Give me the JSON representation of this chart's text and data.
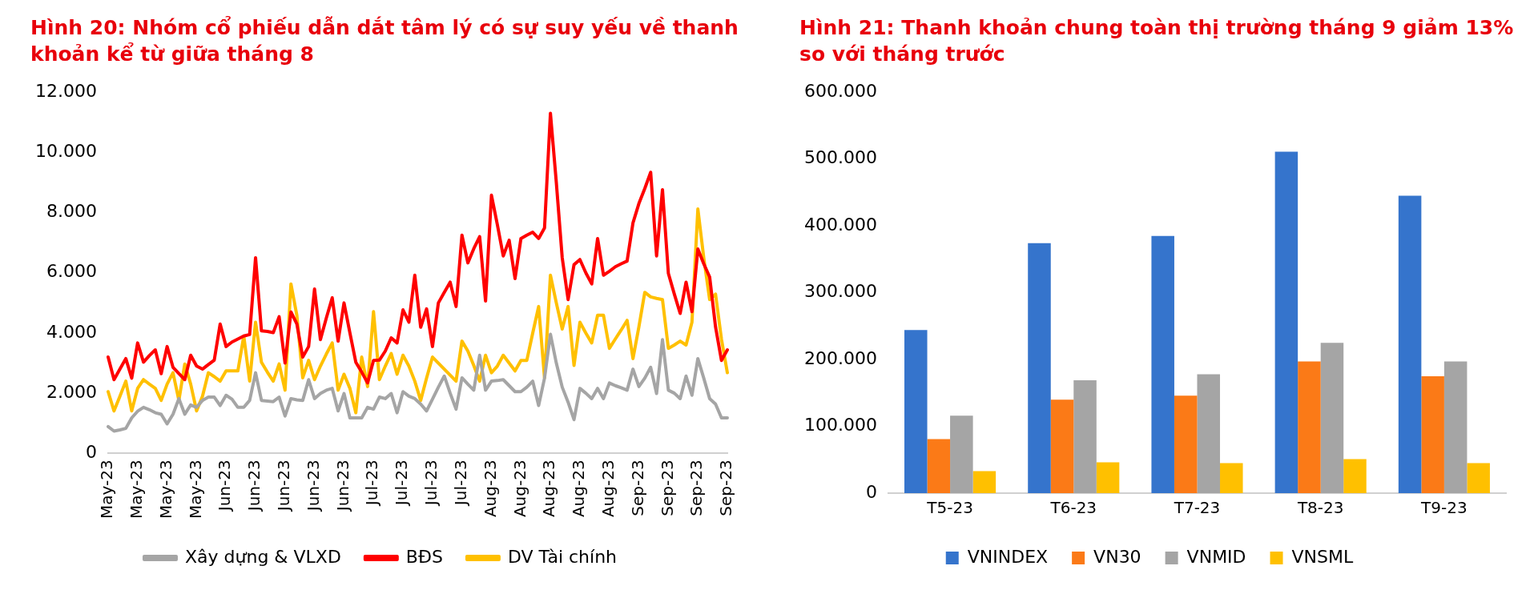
{
  "chart_data": [
    {
      "type": "line",
      "title": "Hình 20: Nhóm cổ phiếu dẫn dắt tâm lý có sự suy yếu về thanh khoản kể từ giữa tháng 8",
      "categories": [
        "May-23",
        null,
        null,
        null,
        null,
        "May-23",
        null,
        null,
        null,
        null,
        "May-23",
        null,
        null,
        null,
        null,
        "May-23",
        null,
        null,
        null,
        null,
        "Jun-23",
        null,
        null,
        null,
        null,
        "Jun-23",
        null,
        null,
        null,
        null,
        "Jun-23",
        null,
        null,
        null,
        null,
        "Jun-23",
        null,
        null,
        null,
        null,
        "Jun-23",
        null,
        null,
        null,
        null,
        "Jul-23",
        null,
        null,
        null,
        null,
        "Jul-23",
        null,
        null,
        null,
        null,
        "Jul-23",
        null,
        null,
        null,
        null,
        "Jul-23",
        null,
        null,
        null,
        null,
        "Aug-23",
        null,
        null,
        null,
        null,
        "Aug-23",
        null,
        null,
        null,
        null,
        "Aug-23",
        null,
        null,
        null,
        null,
        "Aug-23",
        null,
        null,
        null,
        null,
        "Aug-23",
        null,
        null,
        null,
        null,
        "Sep-23",
        null,
        null,
        null,
        null,
        "Sep-23",
        null,
        null,
        null,
        null,
        "Sep-23",
        null,
        null,
        null,
        null,
        "Sep-23"
      ],
      "series": [
        {
          "name": "Xây dựng & VLXD",
          "color": "#a5a5a5",
          "values": [
            890,
            740,
            780,
            830,
            1180,
            1400,
            1530,
            1450,
            1350,
            1300,
            980,
            1300,
            1820,
            1300,
            1610,
            1530,
            1760,
            1870,
            1870,
            1590,
            1930,
            1800,
            1530,
            1530,
            1760,
            2680,
            1760,
            1740,
            1720,
            1870,
            1240,
            1820,
            1780,
            1760,
            2450,
            1820,
            1990,
            2100,
            2160,
            1410,
            1990,
            1180,
            1180,
            1180,
            1530,
            1470,
            1870,
            1820,
            1990,
            1350,
            2050,
            1900,
            1820,
            1640,
            1410,
            1800,
            2200,
            2570,
            2000,
            1470,
            2510,
            2300,
            2100,
            3260,
            2100,
            2400,
            2420,
            2450,
            2250,
            2050,
            2050,
            2200,
            2400,
            1590,
            2500,
            3960,
            3000,
            2200,
            1700,
            1120,
            2160,
            2000,
            1820,
            2160,
            1820,
            2340,
            2250,
            2180,
            2100,
            2800,
            2220,
            2500,
            2860,
            1990,
            3780,
            2100,
            2000,
            1820,
            2570,
            1930,
            3150,
            2500,
            1820,
            1640,
            1180,
            1180
          ]
        },
        {
          "name": "BĐS",
          "color": "#ff0000",
          "values": [
            3200,
            2450,
            2800,
            3150,
            2500,
            3670,
            3030,
            3250,
            3440,
            2650,
            3550,
            2860,
            2650,
            2450,
            3260,
            2900,
            2800,
            2950,
            3100,
            4300,
            3550,
            3700,
            3800,
            3900,
            3950,
            6500,
            4070,
            4050,
            4010,
            4540,
            3000,
            4700,
            4300,
            3200,
            3550,
            5460,
            3780,
            4500,
            5170,
            3730,
            5000,
            4000,
            3030,
            2700,
            2340,
            3090,
            3100,
            3400,
            3840,
            3670,
            4770,
            4360,
            5920,
            4190,
            4800,
            3550,
            5000,
            5350,
            5690,
            4880,
            7250,
            6330,
            6800,
            7200,
            5060,
            8580,
            7600,
            6560,
            7080,
            5810,
            7140,
            7250,
            7350,
            7140,
            7490,
            11300,
            9000,
            6500,
            5110,
            6270,
            6440,
            6000,
            5630,
            7140,
            5920,
            6050,
            6200,
            6300,
            6390,
            7660,
            8300,
            8800,
            9340,
            6560,
            8760,
            5980,
            5300,
            4650,
            5690,
            4710,
            6790,
            6300,
            5860,
            4200,
            3090,
            3440
          ]
        },
        {
          "name": "DV Tài chính",
          "color": "#ffc000",
          "values": [
            2050,
            1410,
            1900,
            2400,
            1410,
            2160,
            2450,
            2300,
            2160,
            1760,
            2300,
            2680,
            1760,
            2970,
            2300,
            1410,
            1900,
            2680,
            2550,
            2400,
            2740,
            2740,
            2740,
            3900,
            2400,
            4360,
            3030,
            2700,
            2400,
            2970,
            2100,
            5630,
            4590,
            2510,
            3090,
            2450,
            2900,
            3300,
            3670,
            2100,
            2630,
            2160,
            1350,
            3200,
            2220,
            4710,
            2450,
            2900,
            3320,
            2630,
            3260,
            2900,
            2400,
            1760,
            2500,
            3200,
            3000,
            2800,
            2600,
            2400,
            3730,
            3400,
            2920,
            2400,
            3260,
            2680,
            2900,
            3260,
            3000,
            2740,
            3090,
            3090,
            4000,
            4880,
            2510,
            5920,
            5000,
            4130,
            4880,
            2920,
            4360,
            4000,
            3670,
            4590,
            4590,
            3490,
            3800,
            4100,
            4420,
            3150,
            4200,
            5350,
            5200,
            5150,
            5110,
            3490,
            3600,
            3730,
            3600,
            4360,
            8120,
            6500,
            5110,
            5290,
            3800,
            2680
          ]
        }
      ],
      "ylim": [
        0,
        12000
      ],
      "yticks": [
        {
          "value": 0,
          "label": "0"
        },
        {
          "value": 2000,
          "label": "2.000"
        },
        {
          "value": 4000,
          "label": "4.000"
        },
        {
          "value": 6000,
          "label": "6.000"
        },
        {
          "value": 8000,
          "label": "8.000"
        },
        {
          "value": 10000,
          "label": "10.000"
        },
        {
          "value": 12000,
          "label": "12.000"
        }
      ],
      "grid": false,
      "legend": "bottom",
      "marker": "none",
      "line_style": "solid"
    },
    {
      "type": "bar",
      "title": "Hình 21: Thanh khoản chung toàn thị trường tháng 9 giảm 13% so với tháng trước",
      "categories": [
        "T5-23",
        "T6-23",
        "T7-23",
        "T8-23",
        "T9-23"
      ],
      "series": [
        {
          "name": "VNINDEX",
          "color": "#3574cc",
          "values": [
            244000,
            374000,
            385000,
            511000,
            445000
          ]
        },
        {
          "name": "VN30",
          "color": "#fb7a17",
          "values": [
            81000,
            140000,
            146000,
            197000,
            175000
          ]
        },
        {
          "name": "VNMID",
          "color": "#a5a5a5",
          "values": [
            116000,
            169000,
            178000,
            225000,
            197000
          ]
        },
        {
          "name": "VNSML",
          "color": "#ffc000",
          "values": [
            33000,
            46000,
            45000,
            51000,
            45000
          ]
        }
      ],
      "ylim": [
        0,
        600000
      ],
      "yticks": [
        {
          "value": 0,
          "label": "0"
        },
        {
          "value": 100000,
          "label": "100.000"
        },
        {
          "value": 200000,
          "label": "200.000"
        },
        {
          "value": 300000,
          "label": "300.000"
        },
        {
          "value": 400000,
          "label": "400.000"
        },
        {
          "value": 500000,
          "label": "500.000"
        },
        {
          "value": 600000,
          "label": "600.000"
        }
      ],
      "grid": false,
      "legend": "bottom"
    }
  ]
}
